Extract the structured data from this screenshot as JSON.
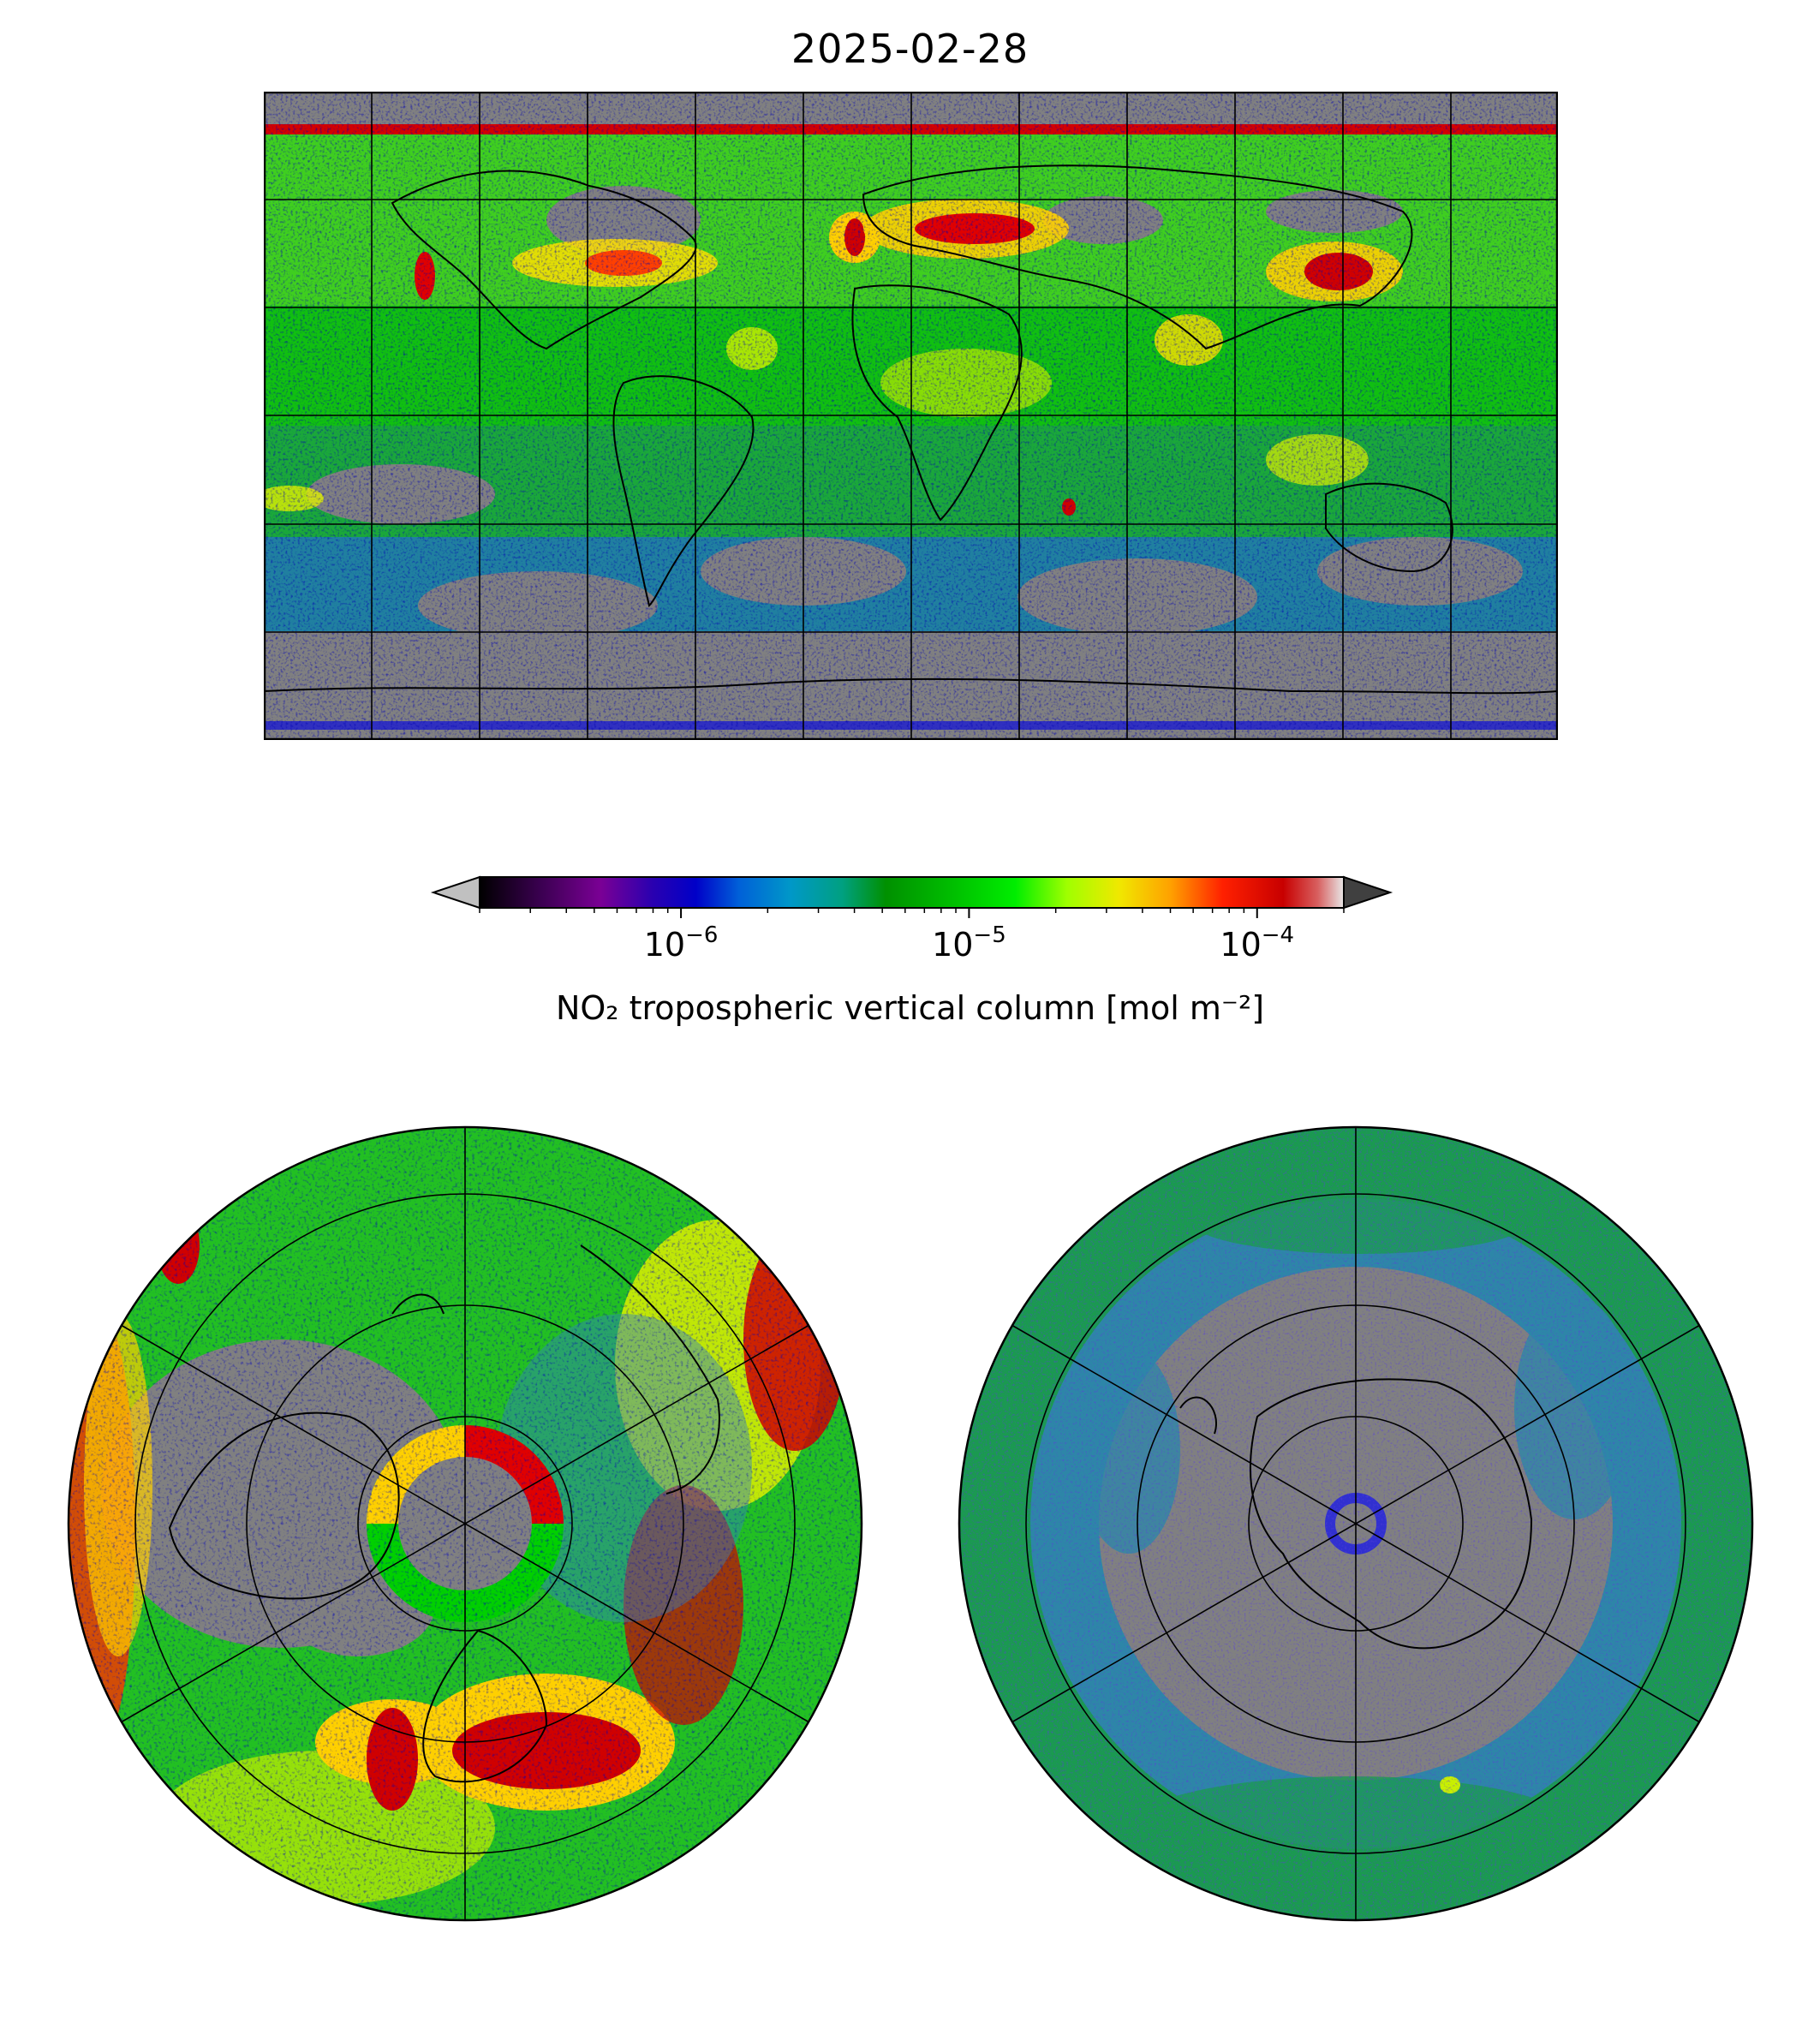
{
  "title": "2025-02-28",
  "colorbar": {
    "label": "NO₂ tropospheric vertical column [mol m⁻²]",
    "scale": "log",
    "range": [
      2e-07,
      0.0002
    ],
    "ticks": [
      {
        "value": 1e-06,
        "base": "10",
        "exp": "−6"
      },
      {
        "value": 1e-05,
        "base": "10",
        "exp": "−5"
      },
      {
        "value": 0.0001,
        "base": "10",
        "exp": "−4"
      }
    ],
    "extend": "both",
    "under_color": "#c0c0c0",
    "over_color": "#404040",
    "missing_color": "#808080",
    "colors": [
      "#000000",
      "#3a0050",
      "#7a0095",
      "#3a00b0",
      "#0000c8",
      "#0050d8",
      "#0090d8",
      "#00a0a0",
      "#00a070",
      "#00a000",
      "#00c800",
      "#00ee00",
      "#80ff00",
      "#e0f000",
      "#ffd000",
      "#ff9000",
      "#ff2000",
      "#d00000",
      "#c00000",
      "#e0e0e0"
    ]
  },
  "maps": {
    "equirectangular": {
      "projection": "PlateCarree",
      "lon_range": [
        -180,
        180
      ],
      "lat_range": [
        -90,
        90
      ],
      "gridlines": true
    },
    "north": {
      "projection": "NorthPolarStereo",
      "gridlines": true
    },
    "south": {
      "projection": "SouthPolarStereo",
      "gridlines": true
    }
  }
}
